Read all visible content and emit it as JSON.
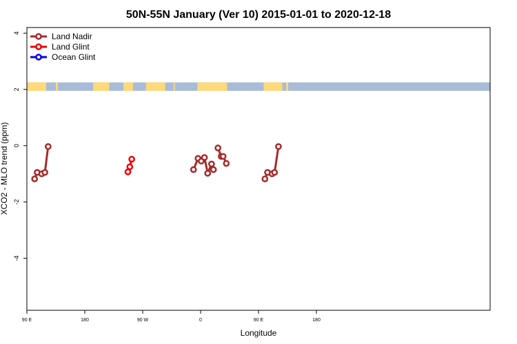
{
  "chart_data": {
    "type": "line",
    "title": "50N-55N January (Ver 10)   2015-01-01 to 2020-12-18",
    "xlabel": "Longitude",
    "ylabel": "XCO2 - MLO trend (ppm)",
    "xlim": [
      90,
      810
    ],
    "ylim": [
      -5.85,
      4.2
    ],
    "x_ticks": [
      {
        "value": 90,
        "label": "90 E"
      },
      {
        "value": 180,
        "label": "180"
      },
      {
        "value": 270,
        "label": "90 W"
      },
      {
        "value": 360,
        "label": "0"
      },
      {
        "value": 450,
        "label": "90 E"
      },
      {
        "value": 540,
        "label": "180"
      }
    ],
    "y_ticks": [
      {
        "value": 4,
        "label": "4"
      },
      {
        "value": 2,
        "label": "2"
      },
      {
        "value": 0,
        "label": "0"
      },
      {
        "value": -2,
        "label": "-2"
      },
      {
        "value": -4,
        "label": "-4"
      }
    ],
    "legend_position": "top-left",
    "land_sea_band": {
      "y_range": [
        1.95,
        2.25
      ],
      "land_color": "#FFD97A",
      "ocean_color": "#A8BCD8"
    },
    "series": [
      {
        "name": "Land Nadir",
        "color": "#A52A2A",
        "segments": [
          [
            [
              102,
              -1.18
            ],
            [
              106,
              -0.95
            ],
            [
              113,
              -1.0
            ],
            [
              118,
              -0.95
            ],
            [
              123,
              -0.03
            ]
          ],
          [
            [
              349,
              -0.85
            ],
            [
              356,
              -0.45
            ],
            [
              361,
              -0.55
            ],
            [
              366,
              -0.42
            ],
            [
              371,
              -0.98
            ],
            [
              377,
              -0.65
            ],
            [
              380,
              -0.85
            ]
          ],
          [
            [
              387,
              -0.08
            ],
            [
              392,
              -0.38
            ],
            [
              395,
              -0.38
            ],
            [
              400,
              -0.63
            ]
          ],
          [
            [
              460,
              -1.18
            ],
            [
              464,
              -0.95
            ],
            [
              471,
              -1.0
            ],
            [
              475,
              -0.95
            ],
            [
              481,
              -0.03
            ]
          ]
        ]
      },
      {
        "name": "Land Glint",
        "color": "#EE0000",
        "segments": [
          [
            [
              247,
              -0.93
            ],
            [
              250,
              -0.75
            ],
            [
              253,
              -0.48
            ]
          ]
        ]
      },
      {
        "name": "Ocean Glint",
        "color": "#0000EE",
        "segments": []
      }
    ]
  }
}
